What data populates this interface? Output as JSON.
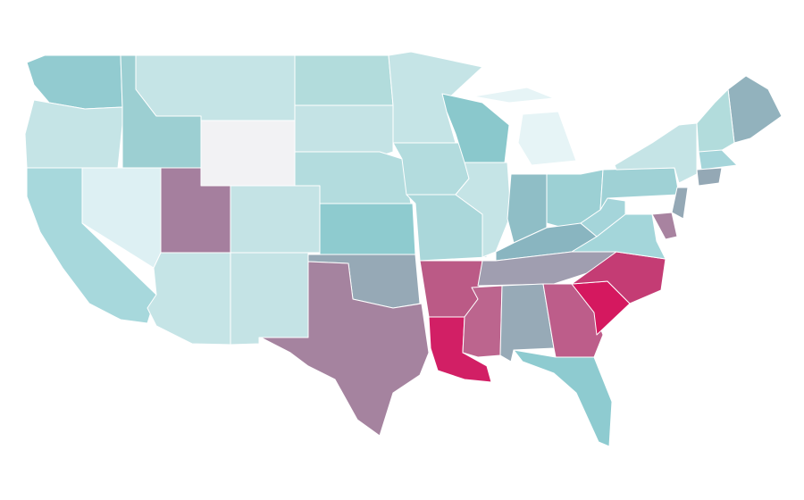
{
  "map": {
    "region_colors": [
      "#92cbd0",
      "#c5e4e6",
      "#a7d8dc",
      "#ddf0f3",
      "#9ccfd2",
      "#c5e4e6",
      "#f2f2f4",
      "#a57f9e",
      "#c4e3e5",
      "#c5e4e6",
      "#c4e3e5",
      "#b2dcdc",
      "#c4e3e5",
      "#b3dcde",
      "#8ecbcf",
      "#96a9b6",
      "#a5839f",
      "#c5e4e6",
      "#b3dcde",
      "#aad7da",
      "#bb5a86",
      "#d21f65",
      "#8ac8cc",
      "#c5e4e6",
      "#e6f4f6",
      "#8fbec6",
      "#9cd0d4",
      "#89b5c0",
      "#a09eb0",
      "#bc658e",
      "#97aab7",
      "#bd5d8a",
      "#8ecbd0",
      "#d5185f",
      "#c43c74",
      "#a4d6da",
      "#a5d5da",
      "#9fd1d5",
      "#c5e4e6",
      "#92b2bd",
      "#b2dcdc",
      "#a5d5da",
      "#94a8b5",
      "#94a8b5",
      "#a883a0"
    ]
  }
}
